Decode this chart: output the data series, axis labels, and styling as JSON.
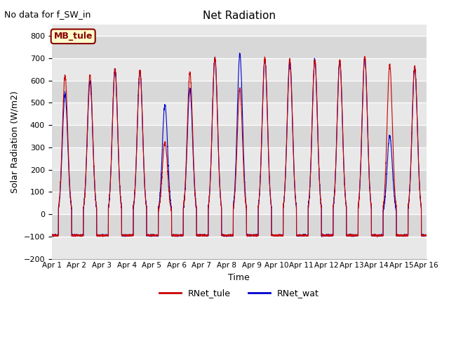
{
  "title": "Net Radiation",
  "suptitle": "No data for f_SW_in",
  "xlabel": "Time",
  "ylabel": "Solar Radiation (W/m2)",
  "ylim": [
    -200,
    850
  ],
  "yticks": [
    -200,
    -100,
    0,
    100,
    200,
    300,
    400,
    500,
    600,
    700,
    800
  ],
  "xlim": [
    0,
    15
  ],
  "xtick_labels": [
    "Apr 1",
    "Apr 2",
    "Apr 3",
    "Apr 4",
    "Apr 5",
    "Apr 6",
    "Apr 7",
    "Apr 8",
    "Apr 9",
    "Apr 10",
    "Apr 11",
    "Apr 12",
    "Apr 13",
    "Apr 14",
    "Apr 15",
    "Apr 16"
  ],
  "color_tule": "#cc0000",
  "color_wat": "#0000cc",
  "legend_label_tule": "RNet_tule",
  "legend_label_wat": "RNet_wat",
  "annotation_text": "MB_tule",
  "annotation_bg": "#ffffcc",
  "annotation_border": "#880000",
  "n_days": 15,
  "peak_height_tule": [
    620,
    625,
    650,
    645,
    325,
    635,
    700,
    560,
    700,
    695,
    690,
    690,
    705,
    670,
    660
  ],
  "peak_height_wat": [
    540,
    595,
    650,
    640,
    490,
    560,
    700,
    720,
    695,
    680,
    690,
    685,
    700,
    350,
    660
  ],
  "night_val": -95,
  "band_colors": [
    "#e8e8e8",
    "#d8d8d8"
  ],
  "plot_bg": "#e8e8e8"
}
